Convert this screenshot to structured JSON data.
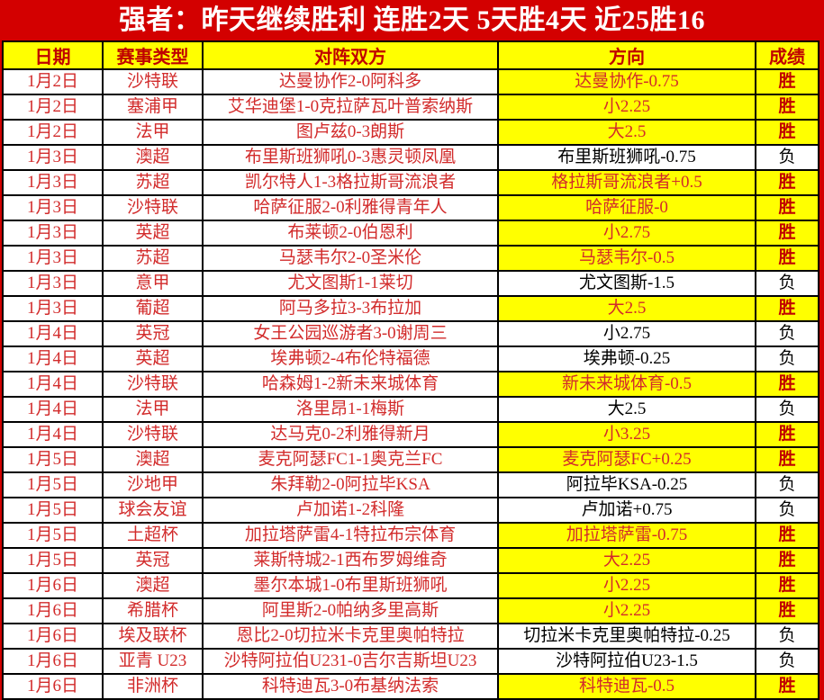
{
  "title": "强者：昨天继续胜利 连胜2天 5天胜4天 近25胜16",
  "colors": {
    "page_red": "#d30000",
    "highlight_yellow": "#ffff00",
    "header_text_red": "#c00000",
    "row_text_red": "#d22b2b",
    "loss_text": "#000000",
    "win_label": "胜",
    "loss_label": "负"
  },
  "table": {
    "headers": [
      "日期",
      "赛事类型",
      "对阵双方",
      "方向",
      "成绩"
    ],
    "rows": [
      {
        "date": "1月2日",
        "league": "沙特联",
        "match": "达曼协作2-0阿科多",
        "direction": "达曼协作-0.75",
        "result": "胜"
      },
      {
        "date": "1月2日",
        "league": "塞浦甲",
        "match": "艾华迪堡1-0克拉萨瓦叶普索纳斯",
        "direction": "小2.25",
        "result": "胜"
      },
      {
        "date": "1月2日",
        "league": "法甲",
        "match": "图卢兹0-3朗斯",
        "direction": "大2.5",
        "result": "胜"
      },
      {
        "date": "1月3日",
        "league": "澳超",
        "match": "布里斯班狮吼0-3惠灵顿凤凰",
        "direction": "布里斯班狮吼-0.75",
        "result": "负"
      },
      {
        "date": "1月3日",
        "league": "苏超",
        "match": "凯尔特人1-3格拉斯哥流浪者",
        "direction": "格拉斯哥流浪者+0.5",
        "result": "胜"
      },
      {
        "date": "1月3日",
        "league": "沙特联",
        "match": "哈萨征服2-0利雅得青年人",
        "direction": "哈萨征服-0",
        "result": "胜"
      },
      {
        "date": "1月3日",
        "league": "英超",
        "match": "布莱顿2-0伯恩利",
        "direction": "小2.75",
        "result": "胜"
      },
      {
        "date": "1月3日",
        "league": "苏超",
        "match": "马瑟韦尔2-0圣米伦",
        "direction": "马瑟韦尔-0.5",
        "result": "胜"
      },
      {
        "date": "1月3日",
        "league": "意甲",
        "match": "尤文图斯1-1莱切",
        "direction": "尤文图斯-1.5",
        "result": "负"
      },
      {
        "date": "1月3日",
        "league": "葡超",
        "match": "阿马多拉3-3布拉加",
        "direction": "大2.5",
        "result": "胜"
      },
      {
        "date": "1月4日",
        "league": "英冠",
        "match": "女王公园巡游者3-0谢周三",
        "direction": "小2.75",
        "result": "负"
      },
      {
        "date": "1月4日",
        "league": "英超",
        "match": "埃弗顿2-4布伦特福德",
        "direction": "埃弗顿-0.25",
        "result": "负"
      },
      {
        "date": "1月4日",
        "league": "沙特联",
        "match": "哈森姆1-2新未来城体育",
        "direction": "新未来城体育-0.5",
        "result": "胜"
      },
      {
        "date": "1月4日",
        "league": "法甲",
        "match": "洛里昂1-1梅斯",
        "direction": "大2.5",
        "result": "负"
      },
      {
        "date": "1月4日",
        "league": "沙特联",
        "match": "达马克0-2利雅得新月",
        "direction": "小3.25",
        "result": "胜"
      },
      {
        "date": "1月5日",
        "league": "澳超",
        "match": "麦克阿瑟FC1-1奥克兰FC",
        "direction": "麦克阿瑟FC+0.25",
        "result": "胜"
      },
      {
        "date": "1月5日",
        "league": "沙地甲",
        "match": "朱拜勒2-0阿拉毕KSA",
        "direction": "阿拉毕KSA-0.25",
        "result": "负"
      },
      {
        "date": "1月5日",
        "league": "球会友谊",
        "match": "卢加诺1-2科隆",
        "direction": "卢加诺+0.75",
        "result": "负"
      },
      {
        "date": "1月5日",
        "league": "土超杯",
        "match": "加拉塔萨雷4-1特拉布宗体育",
        "direction": "加拉塔萨雷-0.75",
        "result": "胜"
      },
      {
        "date": "1月5日",
        "league": "英冠",
        "match": "莱斯特城2-1西布罗姆维奇",
        "direction": "大2.25",
        "result": "胜"
      },
      {
        "date": "1月6日",
        "league": "澳超",
        "match": "墨尔本城1-0布里斯班狮吼",
        "direction": "小2.25",
        "result": "胜"
      },
      {
        "date": "1月6日",
        "league": "希腊杯",
        "match": "阿里斯2-0帕纳多里高斯",
        "direction": "小2.25",
        "result": "胜"
      },
      {
        "date": "1月6日",
        "league": "埃及联杯",
        "match": "恩比2-0切拉米卡克里奥帕特拉",
        "direction": "切拉米卡克里奥帕特拉-0.25",
        "result": "负"
      },
      {
        "date": "1月6日",
        "league": "亚青 U23",
        "match": "沙特阿拉伯U231-0吉尔吉斯坦U23",
        "direction": "沙特阿拉伯U23-1.5",
        "result": "负"
      },
      {
        "date": "1月6日",
        "league": "非洲杯",
        "match": "科特迪瓦3-0布基纳法索",
        "direction": "科特迪瓦-0.5",
        "result": "胜"
      }
    ]
  }
}
